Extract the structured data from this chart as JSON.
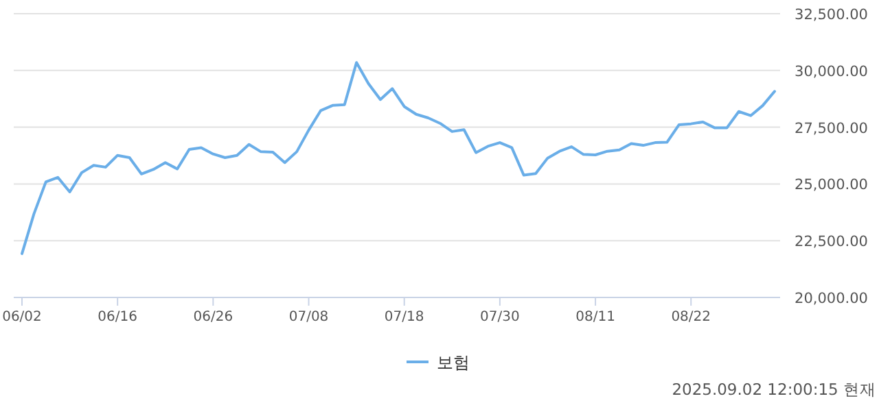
{
  "chart_data": {
    "type": "line",
    "categories": [
      "06/02",
      null,
      null,
      null,
      null,
      null,
      null,
      null,
      "06/16",
      null,
      null,
      null,
      null,
      null,
      null,
      null,
      "06/26",
      null,
      null,
      null,
      null,
      null,
      null,
      null,
      "07/08",
      null,
      null,
      null,
      null,
      null,
      null,
      null,
      "07/18",
      null,
      null,
      null,
      null,
      null,
      null,
      null,
      "07/30",
      null,
      null,
      null,
      null,
      null,
      null,
      null,
      "08/11",
      null,
      null,
      null,
      null,
      null,
      null,
      null,
      "08/22",
      null,
      null,
      null,
      null,
      null,
      null,
      null
    ],
    "series": [
      {
        "name": "보험",
        "color": "#6aaee8",
        "values": [
          21930,
          23680,
          25090,
          25290,
          24650,
          25500,
          25820,
          25740,
          26260,
          26160,
          25440,
          25640,
          25940,
          25660,
          26520,
          26600,
          26320,
          26160,
          26260,
          26740,
          26420,
          26400,
          25940,
          26420,
          27370,
          28230,
          28460,
          28490,
          30350,
          29420,
          28720,
          29200,
          28410,
          28070,
          27910,
          27670,
          27310,
          27390,
          26380,
          26660,
          26820,
          26600,
          25390,
          25460,
          26140,
          26440,
          26640,
          26300,
          26280,
          26440,
          26500,
          26780,
          26700,
          26820,
          26840,
          27610,
          27650,
          27730,
          27470,
          27470,
          28190,
          28010,
          28450,
          29080
        ]
      }
    ],
    "ylim": [
      20000,
      32500
    ],
    "yticks": [
      {
        "value": 20000,
        "label": "20,000.00"
      },
      {
        "value": 22500,
        "label": "22,500.00"
      },
      {
        "value": 25000,
        "label": "25,000.00"
      },
      {
        "value": 27500,
        "label": "27,500.00"
      },
      {
        "value": 30000,
        "label": "30,000.00"
      },
      {
        "value": 32500,
        "label": "32,500.00"
      }
    ],
    "grid": "y",
    "legend": "bottom",
    "marker": "none",
    "line_style": "solid",
    "annotations": [
      "2025.09.02 12:00:15 현재"
    ]
  }
}
